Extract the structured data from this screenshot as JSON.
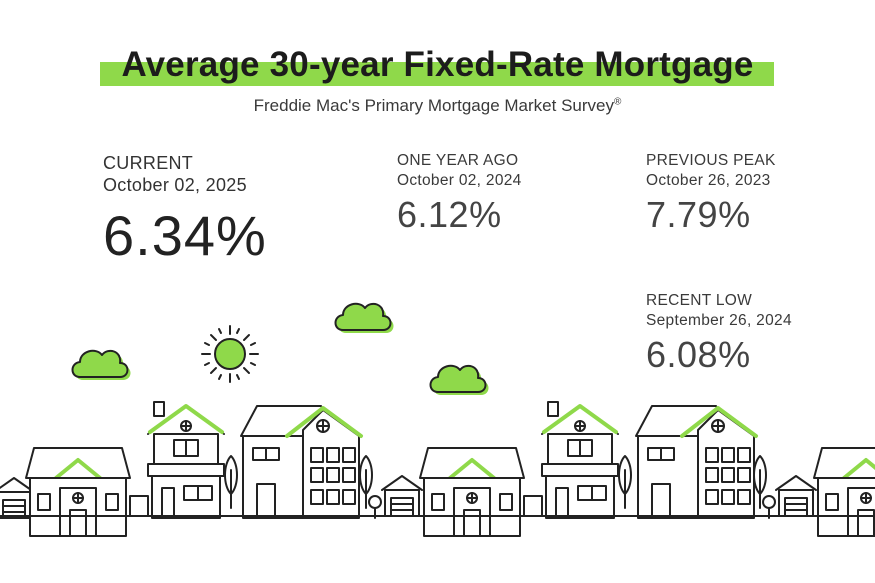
{
  "title": "Average 30-year Fixed-Rate Mortgage",
  "subtitle": "Freddie Mac's Primary Mortgage Market Survey",
  "subtitle_mark": "®",
  "current": {
    "label": "CURRENT",
    "date": "October 02, 2025",
    "rate": "6.34%"
  },
  "year_ago": {
    "label": "ONE YEAR AGO",
    "date": "October 02, 2024",
    "rate": "6.12%"
  },
  "peak": {
    "label": "PREVIOUS PEAK",
    "date": "October 26, 2023",
    "rate": "7.79%"
  },
  "low": {
    "label": "RECENT LOW",
    "date": "September 26, 2024",
    "rate": "6.08%"
  },
  "colors": {
    "accent": "#8fd94a",
    "ink": "#1c1c1c"
  },
  "icons": [
    "sun-icon",
    "cloud-icon",
    "house-icon",
    "tree-icon",
    "garage-icon"
  ]
}
